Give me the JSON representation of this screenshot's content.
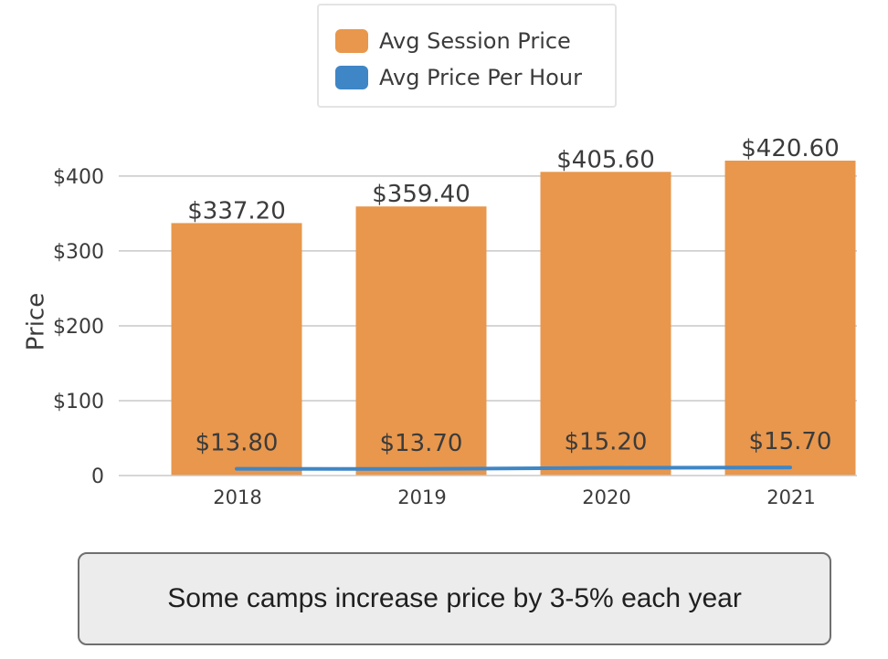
{
  "chart_data": {
    "type": "bar",
    "categories": [
      "2018",
      "2019",
      "2020",
      "2021"
    ],
    "series": [
      {
        "name": "Avg Session Price",
        "kind": "bar",
        "color": "#e8974d",
        "values": [
          337.2,
          359.4,
          405.6,
          420.6
        ],
        "labels": [
          "$337.20",
          "$359.40",
          "$405.60",
          "$420.60"
        ]
      },
      {
        "name": "Avg Price Per Hour",
        "kind": "line",
        "color": "#3f86c6",
        "values": [
          13.8,
          13.7,
          15.2,
          15.7
        ],
        "labels": [
          "$13.80",
          "$13.70",
          "$15.20",
          "$15.70"
        ]
      }
    ],
    "ylabel": "Price",
    "yticks": [
      0,
      100,
      200,
      300,
      400
    ],
    "ytick_labels": [
      "0",
      "$100",
      "$200",
      "$300",
      "$400"
    ],
    "ylim": [
      0,
      420.6
    ],
    "grid": true,
    "legend_position": "top-center"
  },
  "note": "Some camps increase price by 3-5% each year"
}
